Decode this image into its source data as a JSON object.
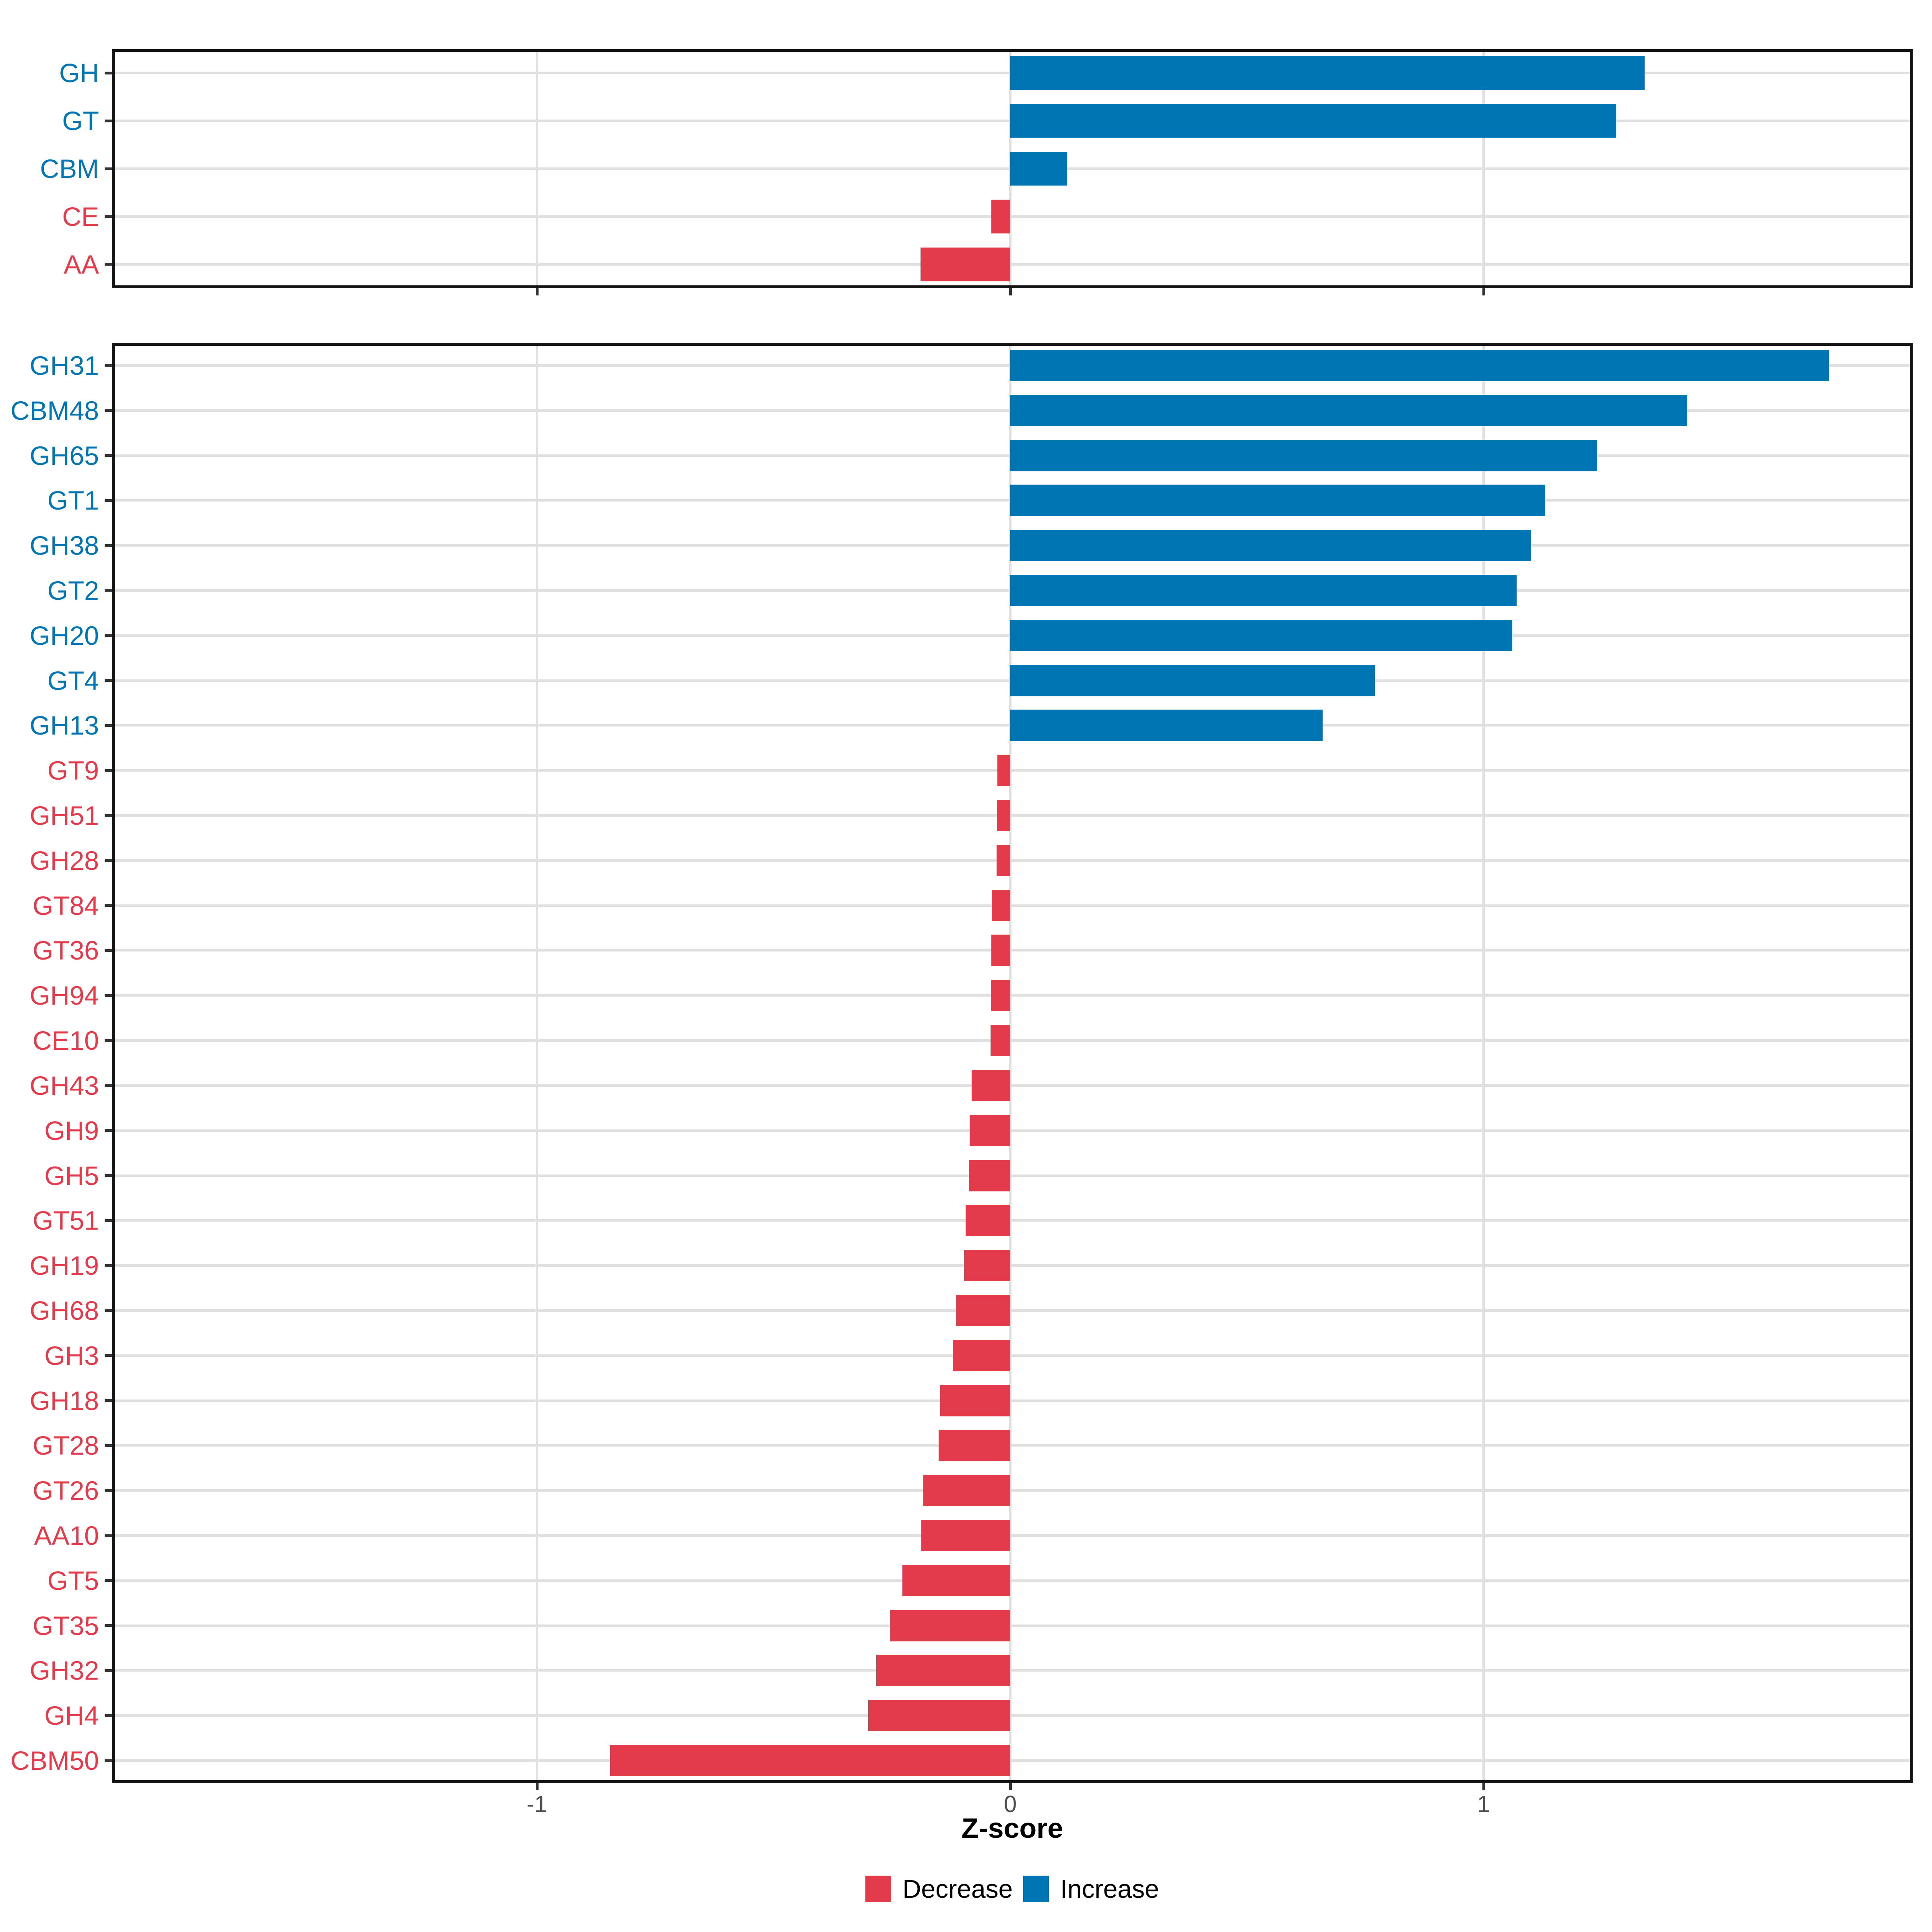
{
  "figure": {
    "background": "#ffffff",
    "colors": {
      "increase": "#0075B4",
      "decrease": "#E43B4C",
      "gridline": "#E0E0E0",
      "panel_border": "#141414",
      "tick_mark": "#333333",
      "axis_tick_text": "#4D4D4D",
      "axis_title_text": "#000000"
    },
    "x_axis": {
      "title": "Z-score",
      "tick_values": [
        -1,
        0,
        1
      ],
      "tick_labels": [
        "-1",
        "0",
        "1"
      ],
      "range": [
        -1.9,
        1.91
      ]
    },
    "legend": {
      "items": [
        {
          "label": "Decrease",
          "color": "#E43B4C"
        },
        {
          "label": "Increase",
          "color": "#0075B4"
        }
      ]
    }
  },
  "chart_data": [
    {
      "type": "bar",
      "orientation": "horizontal",
      "panel": "enzyme-class-summary",
      "xlabel": "Z-score",
      "xlim": [
        -1.9,
        1.91
      ],
      "grid": "on",
      "categories": [
        "GH",
        "GT",
        "CBM",
        "CE",
        "AA"
      ],
      "values": [
        1.34,
        1.28,
        0.12,
        -0.04,
        -0.19
      ],
      "directions": [
        "Increase",
        "Increase",
        "Increase",
        "Decrease",
        "Decrease"
      ]
    },
    {
      "type": "bar",
      "orientation": "horizontal",
      "panel": "cazyme-family-detail",
      "xlabel": "Z-score",
      "xlim": [
        -1.9,
        1.91
      ],
      "grid": "on",
      "categories": [
        "GH31",
        "CBM48",
        "GH65",
        "GT1",
        "GH38",
        "GT2",
        "GH20",
        "GT4",
        "GH13",
        "GT9",
        "GH51",
        "GH28",
        "GT84",
        "GT36",
        "GH94",
        "CE10",
        "GH43",
        "GH9",
        "GH5",
        "GT51",
        "GH19",
        "GH68",
        "GH3",
        "GH18",
        "GT28",
        "GT26",
        "AA10",
        "GT5",
        "GT35",
        "GH32",
        "GH4",
        "CBM50"
      ],
      "values": [
        1.73,
        1.43,
        1.24,
        1.13,
        1.1,
        1.07,
        1.06,
        0.77,
        0.66,
        -0.027,
        -0.028,
        -0.029,
        -0.039,
        -0.04,
        -0.041,
        -0.042,
        -0.082,
        -0.086,
        -0.088,
        -0.094,
        -0.098,
        -0.115,
        -0.122,
        -0.148,
        -0.151,
        -0.184,
        -0.188,
        -0.228,
        -0.254,
        -0.283,
        -0.3,
        -0.845
      ],
      "directions": [
        "Increase",
        "Increase",
        "Increase",
        "Increase",
        "Increase",
        "Increase",
        "Increase",
        "Increase",
        "Increase",
        "Decrease",
        "Decrease",
        "Decrease",
        "Decrease",
        "Decrease",
        "Decrease",
        "Decrease",
        "Decrease",
        "Decrease",
        "Decrease",
        "Decrease",
        "Decrease",
        "Decrease",
        "Decrease",
        "Decrease",
        "Decrease",
        "Decrease",
        "Decrease",
        "Decrease",
        "Decrease",
        "Decrease",
        "Decrease",
        "Decrease"
      ]
    }
  ]
}
